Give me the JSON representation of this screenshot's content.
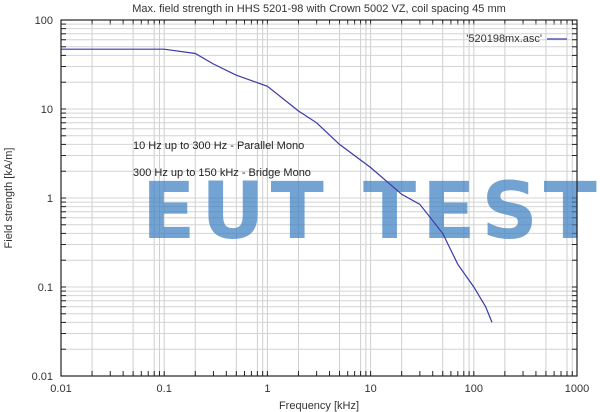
{
  "chart_data": {
    "type": "line",
    "title": "Max. field strength in HHS 5201-98 with Crown 5002 VZ, coil spacing 45 mm",
    "xlabel": "Frequency [kHz]",
    "ylabel": "Field strength [kA/m]",
    "xscale": "log",
    "yscale": "log",
    "xlim": [
      0.01,
      1000
    ],
    "ylim": [
      0.01,
      100
    ],
    "xticks": [
      "0.01",
      "0.1",
      "1",
      "10",
      "100",
      "1000"
    ],
    "yticks": [
      "100",
      "10",
      "1",
      "0.1",
      "0.01"
    ],
    "grid": true,
    "legend_position": "top-right",
    "series": [
      {
        "name": "'520198mx.asc'",
        "color": "#3a3aa8",
        "x": [
          0.01,
          0.1,
          0.2,
          0.3,
          0.5,
          1,
          2,
          3,
          5,
          10,
          20,
          30,
          50,
          70,
          100,
          130,
          150
        ],
        "values": [
          47,
          47,
          42,
          32,
          24,
          18,
          9.5,
          7,
          4,
          2.2,
          1.1,
          0.85,
          0.4,
          0.18,
          0.1,
          0.06,
          0.04
        ]
      }
    ],
    "annotations": [
      "10 Hz up to 300 Hz - Parallel Mono",
      "300 Hz up to 150 kHz - Bridge Mono"
    ],
    "watermark": "EUT TEST"
  }
}
